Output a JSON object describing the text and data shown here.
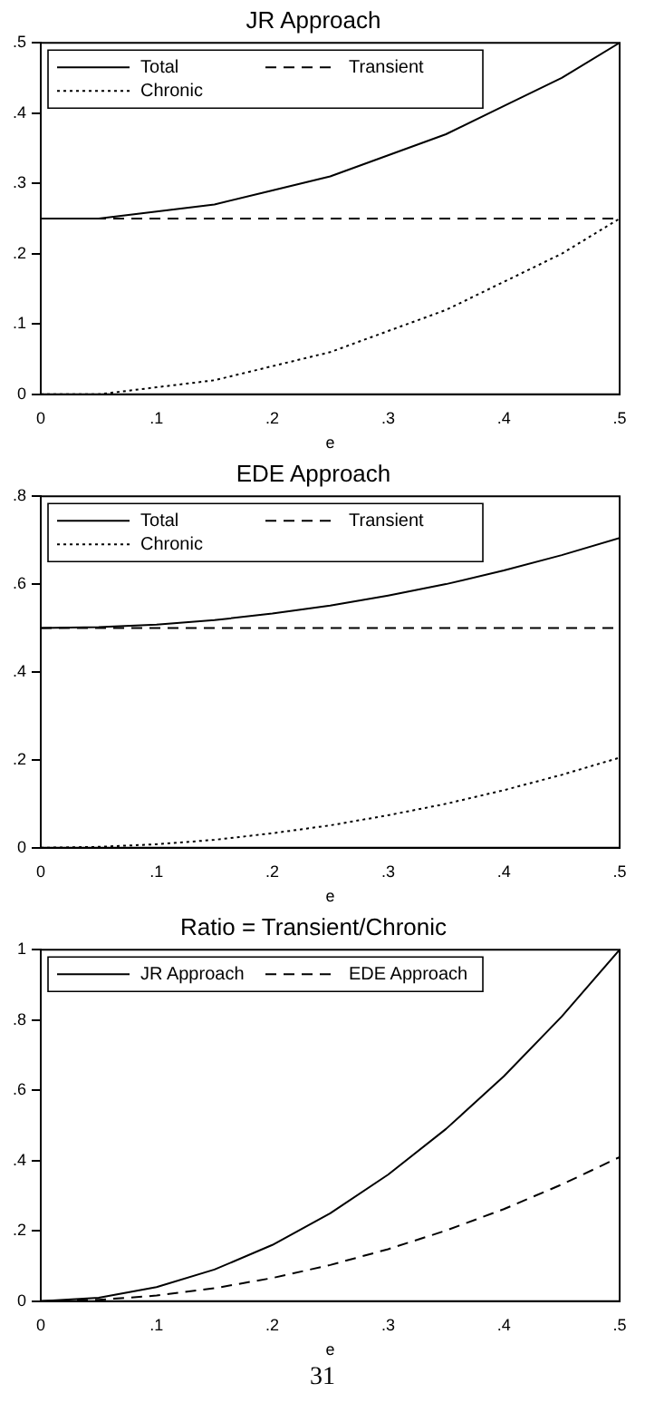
{
  "chart_data": [
    {
      "type": "line",
      "title": "JR Approach",
      "xlabel": "e",
      "x": [
        0,
        0.05,
        0.1,
        0.15,
        0.2,
        0.25,
        0.3,
        0.35,
        0.4,
        0.45,
        0.5
      ],
      "xlim": [
        0,
        0.5
      ],
      "xticks": [
        {
          "value": 0,
          "label": "0"
        },
        {
          "value": 0.1,
          "label": ".1"
        },
        {
          "value": 0.2,
          "label": ".2"
        },
        {
          "value": 0.3,
          "label": ".3"
        },
        {
          "value": 0.4,
          "label": ".4"
        },
        {
          "value": 0.5,
          "label": ".5"
        }
      ],
      "ylim": [
        0,
        0.5
      ],
      "yticks": [
        {
          "value": 0,
          "label": "0"
        },
        {
          "value": 0.1,
          "label": ".1"
        },
        {
          "value": 0.2,
          "label": ".2"
        },
        {
          "value": 0.3,
          "label": ".3"
        },
        {
          "value": 0.4,
          "label": ".4"
        },
        {
          "value": 0.5,
          "label": ".5"
        }
      ],
      "grid": false,
      "legend": "top left",
      "marker": "none",
      "series": [
        {
          "name": "Total",
          "color": "#000000",
          "line_style": "solid",
          "values": [
            0.25,
            0.25,
            0.26,
            0.27,
            0.29,
            0.31,
            0.34,
            0.37,
            0.41,
            0.45,
            0.5
          ]
        },
        {
          "name": "Transient",
          "color": "#000000",
          "line_style": "dashed",
          "values": [
            0.25,
            0.25,
            0.25,
            0.25,
            0.25,
            0.25,
            0.25,
            0.25,
            0.25,
            0.25,
            0.25
          ]
        },
        {
          "name": "Chronic",
          "color": "#000000",
          "line_style": "dotted",
          "values": [
            0,
            0,
            0.01,
            0.02,
            0.04,
            0.06,
            0.09,
            0.12,
            0.16,
            0.2,
            0.25
          ]
        }
      ]
    },
    {
      "type": "line",
      "title": "EDE Approach",
      "xlabel": "e",
      "x": [
        0,
        0.05,
        0.1,
        0.15,
        0.2,
        0.25,
        0.3,
        0.35,
        0.4,
        0.45,
        0.5
      ],
      "xlim": [
        0,
        0.5
      ],
      "xticks": [
        {
          "value": 0,
          "label": "0"
        },
        {
          "value": 0.1,
          "label": ".1"
        },
        {
          "value": 0.2,
          "label": ".2"
        },
        {
          "value": 0.3,
          "label": ".3"
        },
        {
          "value": 0.4,
          "label": ".4"
        },
        {
          "value": 0.5,
          "label": ".5"
        }
      ],
      "ylim": [
        0,
        0.8
      ],
      "yticks": [
        {
          "value": 0,
          "label": "0"
        },
        {
          "value": 0.2,
          "label": ".2"
        },
        {
          "value": 0.4,
          "label": ".4"
        },
        {
          "value": 0.6,
          "label": ".6"
        },
        {
          "value": 0.8,
          "label": ".8"
        }
      ],
      "grid": false,
      "legend": "top left",
      "marker": "none",
      "series": [
        {
          "name": "Total",
          "color": "#000000",
          "line_style": "solid",
          "values": [
            0.5,
            0.502,
            0.508,
            0.518,
            0.533,
            0.551,
            0.574,
            0.6,
            0.631,
            0.666,
            0.705
          ]
        },
        {
          "name": "Transient",
          "color": "#000000",
          "line_style": "dashed",
          "values": [
            0.5,
            0.5,
            0.5,
            0.5,
            0.5,
            0.5,
            0.5,
            0.5,
            0.5,
            0.5,
            0.5
          ]
        },
        {
          "name": "Chronic",
          "color": "#000000",
          "line_style": "dotted",
          "values": [
            0,
            0.002,
            0.008,
            0.018,
            0.033,
            0.051,
            0.074,
            0.1,
            0.131,
            0.166,
            0.205
          ]
        }
      ]
    },
    {
      "type": "line",
      "title": "Ratio = Transient/Chronic",
      "xlabel": "e",
      "x": [
        0,
        0.05,
        0.1,
        0.15,
        0.2,
        0.25,
        0.3,
        0.35,
        0.4,
        0.45,
        0.5
      ],
      "xlim": [
        0,
        0.5
      ],
      "xticks": [
        {
          "value": 0,
          "label": "0"
        },
        {
          "value": 0.1,
          "label": ".1"
        },
        {
          "value": 0.2,
          "label": ".2"
        },
        {
          "value": 0.3,
          "label": ".3"
        },
        {
          "value": 0.4,
          "label": ".4"
        },
        {
          "value": 0.5,
          "label": ".5"
        }
      ],
      "ylim": [
        0,
        1
      ],
      "yticks": [
        {
          "value": 0,
          "label": "0"
        },
        {
          "value": 0.2,
          "label": ".2"
        },
        {
          "value": 0.4,
          "label": ".4"
        },
        {
          "value": 0.6,
          "label": ".6"
        },
        {
          "value": 0.8,
          "label": ".8"
        },
        {
          "value": 1,
          "label": "1"
        }
      ],
      "grid": false,
      "legend": "top left",
      "marker": "none",
      "annotations": [
        "31"
      ],
      "series": [
        {
          "name": "JR Approach",
          "color": "#000000",
          "line_style": "solid",
          "values": [
            0,
            0.01,
            0.04,
            0.09,
            0.16,
            0.25,
            0.36,
            0.49,
            0.64,
            0.81,
            1
          ]
        },
        {
          "name": "EDE Approach",
          "color": "#000000",
          "line_style": "dashed",
          "values": [
            0,
            0.004,
            0.016,
            0.037,
            0.066,
            0.103,
            0.148,
            0.201,
            0.262,
            0.332,
            0.41
          ]
        }
      ]
    }
  ]
}
